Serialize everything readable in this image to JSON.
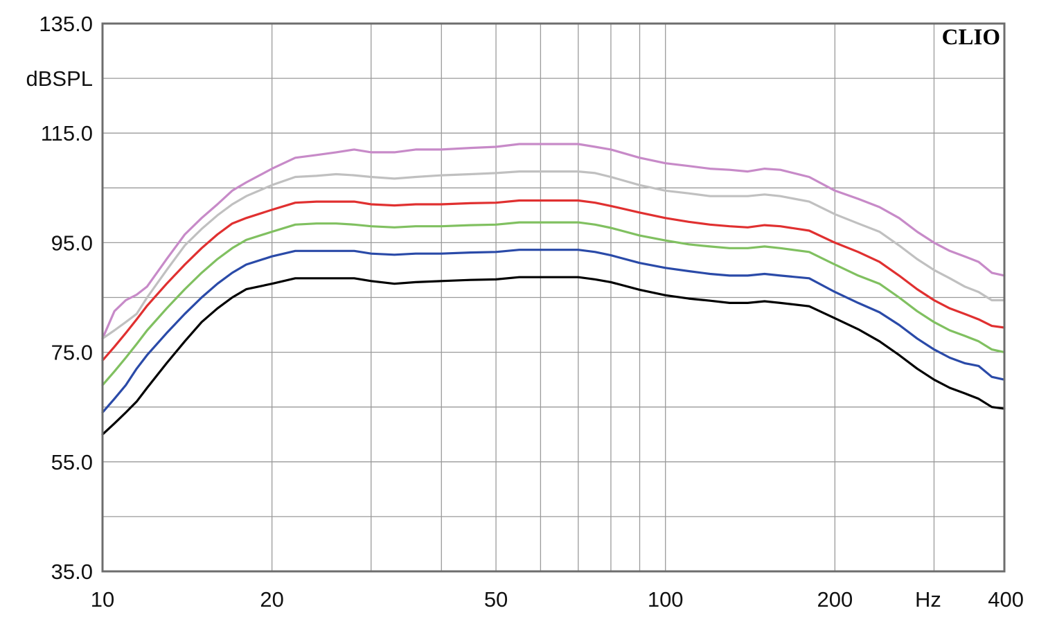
{
  "chart_data": {
    "type": "line",
    "brand": "CLIO",
    "ylabel": "dBSPL",
    "xlabel": "Hz",
    "x_scale": "log",
    "xlim": [
      10,
      400
    ],
    "ylim": [
      35,
      135
    ],
    "y_ticks": [
      {
        "value": 35,
        "label": "35.0"
      },
      {
        "value": 55,
        "label": "55.0"
      },
      {
        "value": 75,
        "label": "75.0"
      },
      {
        "value": 95,
        "label": "95.0"
      },
      {
        "value": 115,
        "label": "115.0"
      },
      {
        "value": 135,
        "label": "135.0"
      }
    ],
    "x_ticks": [
      {
        "value": 10,
        "label": "10"
      },
      {
        "value": 20,
        "label": "20"
      },
      {
        "value": 50,
        "label": "50"
      },
      {
        "value": 100,
        "label": "100"
      },
      {
        "value": 200,
        "label": "200"
      },
      {
        "value": 400,
        "label": "400"
      }
    ],
    "x_gridlines": [
      20,
      30,
      40,
      50,
      60,
      70,
      80,
      90,
      100,
      200,
      300
    ],
    "y_gridlines": [
      45,
      55,
      65,
      75,
      85,
      95,
      105,
      115,
      125
    ],
    "grid": true,
    "x": [
      10,
      10.5,
      11,
      11.5,
      12,
      13,
      14,
      15,
      16,
      17,
      18,
      20,
      22,
      24,
      26,
      28,
      30,
      33,
      36,
      40,
      45,
      50,
      55,
      60,
      65,
      70,
      75,
      80,
      90,
      100,
      110,
      120,
      130,
      140,
      150,
      160,
      180,
      200,
      220,
      240,
      260,
      280,
      300,
      320,
      340,
      360,
      380,
      400
    ],
    "series": [
      {
        "color": "#c78ac8",
        "values": [
          77.5,
          82.5,
          84.5,
          85.5,
          87,
          92,
          96.5,
          99.5,
          102,
          104.5,
          106,
          108.5,
          110.5,
          111,
          111.5,
          112,
          111.5,
          111.5,
          112,
          112,
          112.3,
          112.5,
          113,
          113,
          113,
          113,
          112.5,
          112,
          110.5,
          109.5,
          109,
          108.5,
          108.3,
          108,
          108.5,
          108.3,
          107,
          104.5,
          103,
          101.5,
          99.5,
          97,
          95,
          93.5,
          92.5,
          91.5,
          89.5,
          89
        ]
      },
      {
        "color": "#c0c0c0",
        "values": [
          77.5,
          79,
          80.5,
          82,
          85,
          90,
          94.5,
          97.5,
          100,
          102,
          103.5,
          105.5,
          107,
          107.2,
          107.5,
          107.3,
          107,
          106.7,
          107,
          107.3,
          107.5,
          107.7,
          108,
          108,
          108,
          108,
          107.7,
          107,
          105.5,
          104.5,
          104,
          103.5,
          103.5,
          103.5,
          103.8,
          103.5,
          102.5,
          100.2,
          98.5,
          97,
          94.5,
          92,
          90,
          88.5,
          87,
          86,
          84.5,
          84.5
        ]
      },
      {
        "color": "#e03030",
        "values": [
          73.5,
          76,
          78.5,
          81,
          83.5,
          87.5,
          91,
          94,
          96.5,
          98.5,
          99.5,
          101,
          102.3,
          102.5,
          102.5,
          102.5,
          102,
          101.8,
          102,
          102,
          102.2,
          102.3,
          102.7,
          102.7,
          102.7,
          102.7,
          102.3,
          101.7,
          100.5,
          99.5,
          98.8,
          98.3,
          98,
          97.8,
          98.2,
          98,
          97.2,
          95,
          93.3,
          91.5,
          89,
          86.5,
          84.5,
          83,
          82,
          81,
          79.8,
          79.5
        ]
      },
      {
        "color": "#80c060",
        "values": [
          69,
          71.5,
          74,
          76.5,
          79,
          83,
          86.5,
          89.5,
          92,
          94,
          95.5,
          97,
          98.3,
          98.5,
          98.5,
          98.3,
          98,
          97.8,
          98,
          98,
          98.2,
          98.3,
          98.7,
          98.7,
          98.7,
          98.7,
          98.3,
          97.7,
          96.3,
          95.4,
          94.7,
          94.3,
          94,
          94,
          94.3,
          94,
          93.3,
          91,
          89,
          87.5,
          85,
          82.5,
          80.5,
          79,
          78,
          77,
          75.5,
          75
        ]
      },
      {
        "color": "#2a4aa8",
        "values": [
          64,
          66.5,
          69,
          72,
          74.5,
          78.5,
          82,
          85,
          87.5,
          89.5,
          91,
          92.5,
          93.5,
          93.5,
          93.5,
          93.5,
          93,
          92.8,
          93,
          93,
          93.2,
          93.3,
          93.7,
          93.7,
          93.7,
          93.7,
          93.3,
          92.7,
          91.3,
          90.4,
          89.8,
          89.3,
          89,
          89,
          89.3,
          89,
          88.5,
          86,
          84,
          82.3,
          80,
          77.5,
          75.5,
          74,
          73,
          72.5,
          70.5,
          70
        ]
      },
      {
        "color": "#000000",
        "values": [
          60,
          62,
          64,
          66,
          68.5,
          73,
          77,
          80.5,
          83,
          85,
          86.5,
          87.5,
          88.5,
          88.5,
          88.5,
          88.5,
          88,
          87.5,
          87.8,
          88,
          88.2,
          88.3,
          88.7,
          88.7,
          88.7,
          88.7,
          88.3,
          87.8,
          86.4,
          85.4,
          84.8,
          84.4,
          84,
          84,
          84.3,
          84,
          83.4,
          81.2,
          79.2,
          77,
          74.5,
          72,
          70,
          68.5,
          67.5,
          66.5,
          65,
          64.7
        ]
      }
    ]
  }
}
